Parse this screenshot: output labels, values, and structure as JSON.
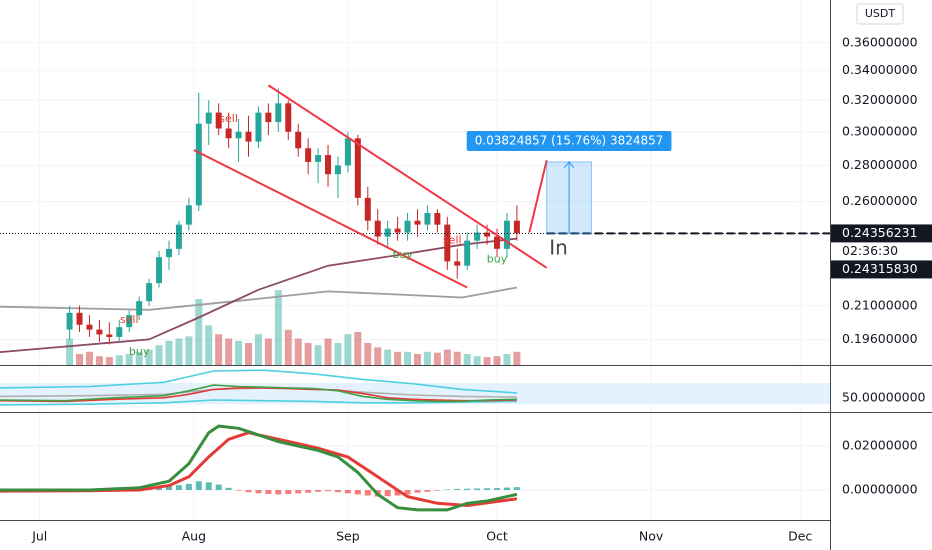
{
  "chart_data": [
    {
      "type": "candlestick",
      "currency": "USDT",
      "x": [
        6,
        8,
        10,
        12,
        14,
        16,
        18,
        20,
        22,
        24,
        26,
        28,
        30,
        32,
        34,
        36,
        38,
        40,
        42,
        44,
        46,
        48,
        50,
        52,
        54,
        56,
        58,
        60,
        62,
        64,
        66,
        68,
        70,
        72,
        74,
        76,
        78,
        80,
        82,
        84,
        86,
        88,
        90,
        92,
        94,
        96
      ],
      "open": [
        0.2,
        0.207,
        0.202,
        0.2,
        0.198,
        0.197,
        0.201,
        0.206,
        0.212,
        0.22,
        0.232,
        0.236,
        0.248,
        0.258,
        0.305,
        0.312,
        0.302,
        0.296,
        0.3,
        0.294,
        0.312,
        0.306,
        0.318,
        0.3,
        0.29,
        0.282,
        0.286,
        0.275,
        0.28,
        0.296,
        0.262,
        0.25,
        0.242,
        0.246,
        0.244,
        0.25,
        0.248,
        0.254,
        0.248,
        0.23,
        0.228,
        0.24,
        0.244,
        0.242,
        0.236,
        0.25
      ],
      "high": [
        0.21,
        0.21,
        0.206,
        0.204,
        0.203,
        0.204,
        0.208,
        0.214,
        0.222,
        0.235,
        0.24,
        0.25,
        0.262,
        0.325,
        0.32,
        0.318,
        0.312,
        0.308,
        0.31,
        0.316,
        0.318,
        0.328,
        0.32,
        0.305,
        0.296,
        0.29,
        0.292,
        0.285,
        0.3,
        0.298,
        0.268,
        0.256,
        0.25,
        0.252,
        0.254,
        0.256,
        0.258,
        0.256,
        0.252,
        0.236,
        0.244,
        0.248,
        0.248,
        0.246,
        0.254,
        0.258
      ],
      "low": [
        0.196,
        0.199,
        0.197,
        0.195,
        0.194,
        0.195,
        0.199,
        0.204,
        0.21,
        0.218,
        0.226,
        0.233,
        0.245,
        0.255,
        0.292,
        0.298,
        0.29,
        0.282,
        0.285,
        0.29,
        0.298,
        0.3,
        0.295,
        0.285,
        0.275,
        0.27,
        0.268,
        0.262,
        0.276,
        0.258,
        0.245,
        0.238,
        0.236,
        0.24,
        0.24,
        0.242,
        0.245,
        0.244,
        0.226,
        0.222,
        0.226,
        0.236,
        0.238,
        0.232,
        0.232,
        0.24
      ],
      "close": [
        0.207,
        0.202,
        0.2,
        0.198,
        0.197,
        0.201,
        0.206,
        0.212,
        0.22,
        0.232,
        0.236,
        0.248,
        0.258,
        0.305,
        0.312,
        0.302,
        0.296,
        0.3,
        0.294,
        0.312,
        0.306,
        0.318,
        0.3,
        0.29,
        0.282,
        0.286,
        0.275,
        0.28,
        0.296,
        0.262,
        0.25,
        0.242,
        0.246,
        0.244,
        0.25,
        0.248,
        0.254,
        0.248,
        0.23,
        0.228,
        0.24,
        0.244,
        0.242,
        0.236,
        0.25,
        0.2436
      ],
      "up_color": "#26a69a",
      "down_color": "#c62828",
      "volume": [
        60,
        25,
        30,
        20,
        18,
        22,
        25,
        30,
        35,
        45,
        55,
        60,
        65,
        150,
        90,
        70,
        60,
        55,
        50,
        70,
        60,
        170,
        80,
        60,
        50,
        45,
        60,
        50,
        70,
        75,
        50,
        40,
        35,
        30,
        30,
        25,
        30,
        28,
        35,
        30,
        25,
        20,
        18,
        20,
        25,
        30
      ],
      "volume_lim": [
        0,
        250
      ],
      "log_scale": true,
      "ylim": [
        0.186,
        0.393
      ],
      "xlim": [
        -8,
        159
      ],
      "yticks": [
        {
          "value": 0.36,
          "label": "0.36000000"
        },
        {
          "value": 0.34,
          "label": "0.34000000"
        },
        {
          "value": 0.32,
          "label": "0.32000000"
        },
        {
          "value": 0.3,
          "label": "0.30000000"
        },
        {
          "value": 0.28,
          "label": "0.28000000"
        },
        {
          "value": 0.26,
          "label": "0.26000000"
        },
        {
          "value": 0.21,
          "label": "0.21000000"
        },
        {
          "value": 0.196,
          "label": "0.19600000"
        }
      ],
      "lines": [
        {
          "color": "#9e9e9e",
          "x": [
            -8,
            22,
            42,
            58,
            72,
            85,
            96
          ],
          "values": [
            0.2096,
            0.2083,
            0.2126,
            0.2163,
            0.2149,
            0.2136,
            0.218
          ]
        },
        {
          "color": "#8d4a63",
          "x": [
            -8,
            22,
            32,
            44,
            58,
            72,
            85,
            96
          ],
          "values": [
            0.191,
            0.196,
            0.205,
            0.217,
            0.228,
            0.233,
            0.238,
            0.241
          ]
        }
      ],
      "signals": [
        {
          "text": "sell",
          "x": 38,
          "y": 0.308,
          "color": "#e53935"
        },
        {
          "text": "sell",
          "x": 18,
          "y": 0.204,
          "color": "#e53935"
        },
        {
          "text": "buy",
          "x": 20,
          "y": 0.191,
          "color": "#43a047"
        },
        {
          "text": "buy",
          "x": 73,
          "y": 0.233,
          "color": "#43a047"
        },
        {
          "text": "sell",
          "x": 83,
          "y": 0.24,
          "color": "#e53935"
        },
        {
          "text": "buy",
          "x": 92,
          "y": 0.231,
          "color": "#43a047"
        }
      ],
      "drawings": [
        {
          "color": "#f23645",
          "x": [
            46,
            102
          ],
          "y": [
            0.33,
            0.227
          ]
        },
        {
          "color": "#f23645",
          "x": [
            31,
            86
          ],
          "y": [
            0.289,
            0.218
          ]
        },
        {
          "color": "#f23645",
          "x": [
            98.5,
            102
          ],
          "y": [
            0.244,
            0.283
          ]
        }
      ],
      "measure": {
        "x": [
          102,
          111
        ],
        "y": [
          0.2436,
          0.282
        ],
        "label": "0.03824857 (15.76%) 3824857",
        "color": "#2196f3"
      },
      "note": {
        "text": "In",
        "x": 102.5,
        "y": 0.236
      },
      "last_price": 0.24356231,
      "countdown": "02:36:30",
      "bid_price": {
        "value": 0.2431583,
        "label": "0.24315830"
      }
    },
    {
      "type": "line",
      "ylim": [
        30,
        95
      ],
      "xlim": [
        -8,
        159
      ],
      "yticks": [
        {
          "value": 50,
          "label": "50.00000000"
        }
      ],
      "band": [
        41,
        71
      ],
      "band_color": "#e3f2fd",
      "series": [
        {
          "color": "#4dd0e1",
          "x": [
            -8,
            10,
            25,
            35,
            45,
            55,
            65,
            75,
            85,
            96
          ],
          "values": [
            64,
            66,
            72,
            88,
            89,
            84,
            76,
            70,
            62,
            57
          ]
        },
        {
          "color": "#4dd0e1",
          "x": [
            -8,
            10,
            25,
            35,
            45,
            55,
            65,
            75,
            85,
            96
          ],
          "values": [
            40,
            41,
            43,
            47,
            46,
            45,
            43,
            43,
            44,
            45
          ]
        },
        {
          "color": "#b0b0b0",
          "x": [
            -8,
            10,
            25,
            35,
            45,
            55,
            65,
            75,
            85,
            96
          ],
          "values": [
            52,
            53,
            55,
            62,
            64,
            63,
            58,
            54,
            52,
            51
          ]
        },
        {
          "color": "#e53935",
          "x": [
            -8,
            5,
            15,
            25,
            30,
            35,
            40,
            45,
            50,
            55,
            60,
            65,
            70,
            75,
            80,
            85,
            90,
            96
          ],
          "values": [
            46,
            45,
            48,
            50,
            55,
            62,
            64,
            64,
            63,
            62,
            61,
            56,
            50,
            48,
            47,
            46,
            46,
            47
          ]
        },
        {
          "color": "#43a047",
          "x": [
            -8,
            5,
            15,
            25,
            30,
            35,
            40,
            45,
            50,
            55,
            60,
            65,
            70,
            75,
            80,
            85,
            90,
            96
          ],
          "values": [
            47,
            46,
            50,
            53,
            60,
            68,
            66,
            65,
            64,
            63,
            60,
            52,
            48,
            46,
            45,
            45,
            47,
            48
          ]
        }
      ]
    },
    {
      "type": "macd",
      "ylim": [
        -0.0136,
        0.0345
      ],
      "xlim": [
        -8,
        159
      ],
      "yticks": [
        {
          "value": 0.02,
          "label": "0.02000000"
        },
        {
          "value": 0,
          "label": "0.00000000"
        }
      ],
      "xticks": [
        {
          "value": 0,
          "label": "Jul"
        },
        {
          "value": 31,
          "label": "Aug"
        },
        {
          "value": 62,
          "label": "Sep"
        },
        {
          "value": 92,
          "label": "Oct"
        },
        {
          "value": 123,
          "label": "Nov"
        },
        {
          "value": 153,
          "label": "Dec"
        }
      ],
      "x": [
        6,
        8,
        10,
        12,
        14,
        16,
        18,
        20,
        22,
        24,
        26,
        28,
        30,
        32,
        34,
        36,
        38,
        40,
        42,
        44,
        46,
        48,
        50,
        52,
        54,
        56,
        58,
        60,
        62,
        64,
        66,
        68,
        70,
        72,
        74,
        76,
        78,
        80,
        82,
        84,
        86,
        88,
        90,
        92,
        94,
        96
      ],
      "histogram": [
        0.0003,
        0.0004,
        0.0002,
        -0.0002,
        0.0001,
        0.0003,
        0.0005,
        0.0008,
        0.0012,
        0.0015,
        0.0018,
        0.0022,
        0.0028,
        0.004,
        0.0035,
        0.0025,
        0.001,
        -0.0003,
        -0.001,
        -0.0015,
        -0.0018,
        -0.002,
        -0.0018,
        -0.0015,
        -0.0012,
        -0.0008,
        -0.0005,
        -0.001,
        -0.0015,
        -0.002,
        -0.0025,
        -0.003,
        -0.0028,
        -0.0025,
        -0.002,
        -0.0012,
        -0.0008,
        -0.0003,
        0.0002,
        0.0005,
        0.0006,
        0.0007,
        0.0008,
        0.0009,
        0.0011,
        0.0013
      ],
      "up_color": "#26a69a",
      "down_color": "#ef5350",
      "series": [
        {
          "color": "#e53935",
          "x": [
            -8,
            10,
            20,
            26,
            30,
            34,
            38,
            42,
            46,
            50,
            56,
            62,
            68,
            74,
            80,
            86,
            96
          ],
          "values": [
            -0.0005,
            -0.0003,
            0,
            0.002,
            0.006,
            0.015,
            0.023,
            0.026,
            0.024,
            0.022,
            0.019,
            0.015,
            0.006,
            -0.003,
            -0.006,
            -0.007,
            -0.004
          ]
        },
        {
          "color": "#388e3c",
          "x": [
            -8,
            10,
            20,
            26,
            30,
            34,
            36,
            40,
            44,
            48,
            52,
            56,
            60,
            64,
            68,
            72,
            76,
            82,
            86,
            90,
            96
          ],
          "values": [
            0,
            0,
            0.001,
            0.004,
            0.012,
            0.026,
            0.029,
            0.028,
            0.025,
            0.022,
            0.02,
            0.018,
            0.015,
            0.008,
            -0.002,
            -0.008,
            -0.009,
            -0.009,
            -0.006,
            -0.005,
            -0.002
          ]
        }
      ]
    }
  ]
}
